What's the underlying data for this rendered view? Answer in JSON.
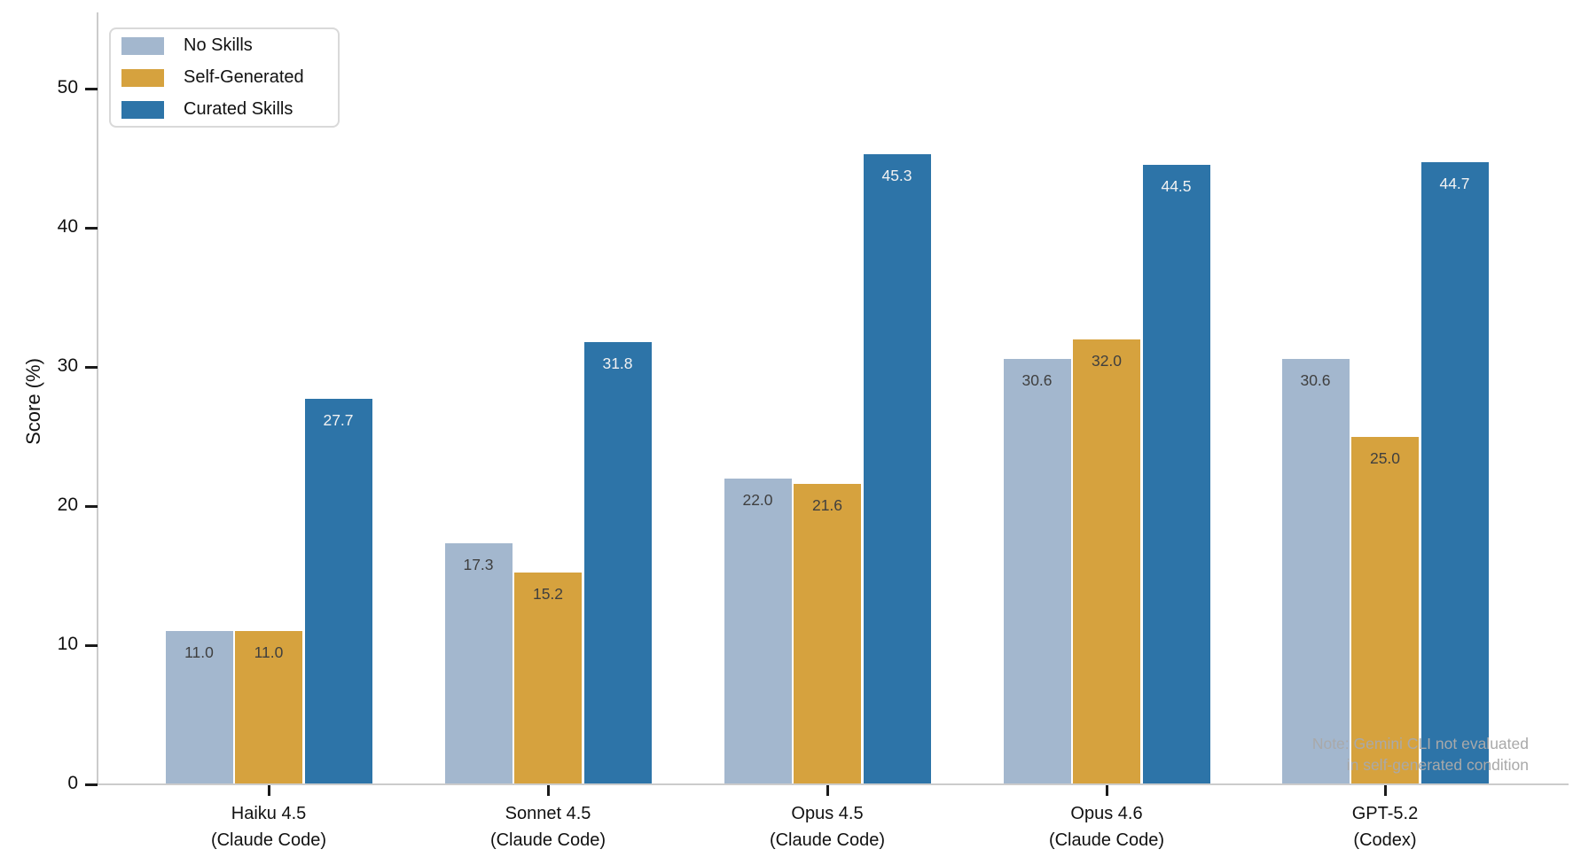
{
  "chart_data": {
    "type": "bar",
    "title": "",
    "ylabel": "Score (%)",
    "xlabel": "",
    "ylim": [
      0,
      55.4
    ],
    "yticks": [
      0,
      10,
      20,
      30,
      40,
      50
    ],
    "grid": false,
    "legend_position": "upper-left",
    "categories": [
      {
        "line1": "Haiku 4.5",
        "line2": "(Claude Code)"
      },
      {
        "line1": "Sonnet 4.5",
        "line2": "(Claude Code)"
      },
      {
        "line1": "Opus 4.5",
        "line2": "(Claude Code)"
      },
      {
        "line1": "Opus 4.6",
        "line2": "(Claude Code)"
      },
      {
        "line1": "GPT-5.2",
        "line2": "(Codex)"
      }
    ],
    "series": [
      {
        "name": "No Skills",
        "color": "#a3b7ce",
        "label_color": "#3f3f3f",
        "values": [
          11.0,
          17.3,
          22.0,
          30.6,
          30.6
        ]
      },
      {
        "name": "Self-Generated",
        "color": "#d6a23e",
        "label_color": "#3f3f3f",
        "values": [
          11.0,
          15.2,
          21.6,
          32.0,
          25.0
        ]
      },
      {
        "name": "Curated Skills",
        "color": "#2d74a8",
        "label_color": "#f2f2f2",
        "values": [
          27.7,
          31.8,
          45.3,
          44.5,
          44.7
        ]
      }
    ],
    "note_line1": "Note: Gemini CLI not evaluated",
    "note_line2": "in self-generated condition",
    "axis_color": "#cccccc",
    "tick_color": "#1a1a1a"
  }
}
